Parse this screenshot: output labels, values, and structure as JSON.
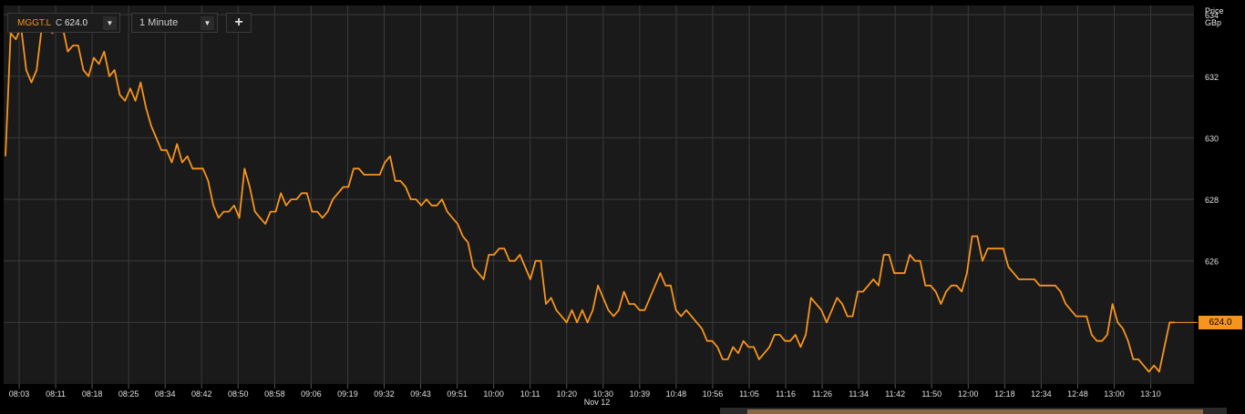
{
  "toolbar": {
    "symbol": "MGGT.L",
    "close_label": "C",
    "close_value": "624.0",
    "interval": "1 Minute",
    "add_label": "+",
    "dropdown_glyph": "▼"
  },
  "axis_title": {
    "line1": "Price",
    "line2": "GBp"
  },
  "last_price_label": "624.0",
  "date_label": "Nov 12",
  "colors": {
    "line": "#f7941d",
    "grid": "#3a3a3a",
    "background": "#1a1a1a",
    "text": "#e0e0e0"
  },
  "chart_data": {
    "type": "line",
    "title": "",
    "xlabel": "",
    "ylabel": "Price GBp",
    "ylim": [
      622.0,
      634.3
    ],
    "y_ticks": [
      634,
      632,
      630,
      628,
      626
    ],
    "grid": true,
    "x_tick_labels": [
      "08:03",
      "08:11",
      "08:18",
      "08:25",
      "08:34",
      "08:42",
      "08:50",
      "08:58",
      "09:06",
      "09:19",
      "09:32",
      "09:43",
      "09:51",
      "10:00",
      "10:11",
      "10:20",
      "10:30",
      "10:39",
      "10:48",
      "10:56",
      "11:05",
      "11:16",
      "11:26",
      "11:34",
      "11:42",
      "11:50",
      "12:00",
      "12:18",
      "12:34",
      "12:48",
      "13:00",
      "13:10"
    ],
    "series": [
      {
        "values": [
          629.4,
          633.4,
          633.2,
          633.6,
          632.2,
          631.8,
          632.2,
          633.6,
          633.8,
          633.4,
          633.6,
          633.6,
          632.8,
          633.0,
          633.0,
          632.2,
          632.0,
          632.6,
          632.4,
          632.8,
          632.0,
          632.2,
          631.4,
          631.2,
          631.6,
          631.2,
          631.8,
          631.0,
          630.4,
          630.0,
          629.6,
          629.6,
          629.2,
          629.8,
          629.2,
          629.4,
          629.0,
          629.0,
          629.0,
          628.6,
          627.8,
          627.4,
          627.6,
          627.6,
          627.8,
          627.4,
          629.0,
          628.4,
          627.6,
          627.4,
          627.2,
          627.6,
          627.6,
          628.2,
          627.8,
          628.0,
          628.0,
          628.2,
          628.2,
          627.6,
          627.6,
          627.4,
          627.6,
          628.0,
          628.2,
          628.4,
          628.4,
          629.0,
          629.0,
          628.8,
          628.8,
          628.8,
          628.8,
          629.2,
          629.4,
          628.6,
          628.6,
          628.4,
          628.0,
          628.0,
          627.8,
          628.0,
          627.8,
          627.8,
          628.0,
          627.6,
          627.4,
          627.2,
          626.8,
          626.6,
          625.8,
          625.6,
          625.4,
          626.2,
          626.2,
          626.4,
          626.4,
          626.0,
          626.0,
          626.2,
          625.8,
          625.4,
          626.0,
          626.0,
          624.6,
          624.8,
          624.4,
          624.2,
          624.0,
          624.4,
          624.0,
          624.4,
          624.0,
          624.4,
          625.2,
          624.8,
          624.4,
          624.2,
          624.4,
          625.0,
          624.6,
          624.6,
          624.4,
          624.4,
          624.8,
          625.2,
          625.6,
          625.2,
          625.2,
          624.4,
          624.2,
          624.4,
          624.2,
          624.0,
          623.8,
          623.4,
          623.4,
          623.2,
          622.8,
          622.8,
          623.2,
          623.0,
          623.4,
          623.2,
          623.2,
          622.8,
          623.0,
          623.2,
          623.6,
          623.6,
          623.4,
          623.4,
          623.6,
          623.2,
          623.6,
          624.8,
          624.6,
          624.4,
          624.0,
          624.4,
          624.8,
          624.6,
          624.2,
          624.2,
          625.0,
          625.0,
          625.2,
          625.4,
          625.2,
          626.2,
          626.2,
          625.6,
          625.6,
          625.6,
          626.2,
          626.0,
          626.0,
          625.2,
          625.2,
          625.0,
          624.6,
          625.0,
          625.2,
          625.2,
          625.0,
          625.6,
          626.8,
          626.8,
          626.0,
          626.4,
          626.4,
          626.4,
          626.4,
          625.8,
          625.6,
          625.4,
          625.4,
          625.4,
          625.4,
          625.2,
          625.2,
          625.2,
          625.2,
          625.0,
          624.6,
          624.4,
          624.2,
          624.2,
          624.2,
          623.6,
          623.4,
          623.4,
          623.6,
          624.6,
          624.0,
          623.8,
          623.4,
          622.8,
          622.8,
          622.6,
          622.4,
          622.6,
          622.4,
          623.2,
          624.0,
          624.0
        ]
      }
    ]
  }
}
